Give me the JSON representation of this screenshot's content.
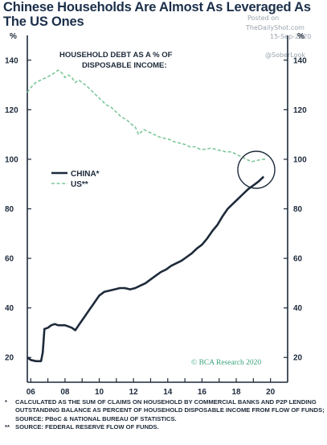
{
  "title": "Chinese Households Are Almost As Leveraged As The US Ones",
  "watermark": {
    "line1": "Posted on",
    "line2": "TheDailyShot.com",
    "line3": "15-Sep-2020",
    "line4": "@SoberLook"
  },
  "chart_data": {
    "type": "line",
    "subtitle": "HOUSEHOLD DEBT AS A % OF DISPOSABLE INCOME:",
    "ylabel_left": "%",
    "ylabel_right": "%",
    "ylim": [
      10,
      150
    ],
    "xlim": [
      2005.8,
      2021.0
    ],
    "yticks": [
      20,
      40,
      60,
      80,
      100,
      120,
      140
    ],
    "xticks": [
      {
        "value": 2006,
        "label": "06"
      },
      {
        "value": 2008,
        "label": "08"
      },
      {
        "value": 2010,
        "label": "10"
      },
      {
        "value": 2012,
        "label": "12"
      },
      {
        "value": 2014,
        "label": "14"
      },
      {
        "value": 2016,
        "label": "16"
      },
      {
        "value": 2018,
        "label": "18"
      },
      {
        "value": 2020,
        "label": "20"
      }
    ],
    "legend_position": "middle-left",
    "credit": "© BCA Research 2020",
    "series": [
      {
        "name": "CHINA*",
        "color": "#1d2a3a",
        "style": "solid",
        "x": [
          2005.8,
          2006.0,
          2006.3,
          2006.6,
          2006.7,
          2006.8,
          2007.0,
          2007.2,
          2007.4,
          2007.6,
          2007.8,
          2008.0,
          2008.2,
          2008.4,
          2008.6,
          2008.8,
          2009.0,
          2009.2,
          2009.4,
          2009.6,
          2009.8,
          2010.0,
          2010.3,
          2010.6,
          2010.9,
          2011.2,
          2011.5,
          2011.8,
          2012.1,
          2012.4,
          2012.7,
          2013.0,
          2013.3,
          2013.6,
          2013.9,
          2014.2,
          2014.5,
          2014.8,
          2015.1,
          2015.4,
          2015.7,
          2016.0,
          2016.3,
          2016.6,
          2016.9,
          2017.2,
          2017.5,
          2017.8,
          2018.1,
          2018.4,
          2018.7,
          2019.0,
          2019.3,
          2019.6
        ],
        "y": [
          20,
          19,
          18.5,
          18.5,
          22,
          31.5,
          32,
          33,
          33.5,
          33,
          33,
          33,
          32.5,
          32,
          31,
          33,
          35,
          37,
          39,
          41,
          43,
          45,
          46.5,
          47,
          47.5,
          48,
          48,
          47.5,
          48,
          49,
          50,
          51.5,
          53,
          54.5,
          55.5,
          57,
          58,
          59,
          60.5,
          62,
          64,
          65.5,
          68,
          71,
          73.5,
          77,
          80,
          82,
          84,
          86,
          88,
          89.5,
          91,
          93
        ]
      },
      {
        "name": "US**",
        "color": "#7ec79a",
        "style": "dashed",
        "x": [
          2005.8,
          2006.0,
          2006.3,
          2006.6,
          2006.9,
          2007.2,
          2007.4,
          2007.6,
          2007.8,
          2008.0,
          2008.2,
          2008.4,
          2008.6,
          2008.8,
          2009.0,
          2009.2,
          2009.5,
          2009.8,
          2010.1,
          2010.4,
          2010.7,
          2011.0,
          2011.3,
          2011.6,
          2011.9,
          2012.1,
          2012.3,
          2012.6,
          2012.9,
          2013.2,
          2013.5,
          2013.8,
          2014.1,
          2014.4,
          2014.7,
          2015.0,
          2015.3,
          2015.6,
          2015.9,
          2016.2,
          2016.5,
          2016.8,
          2017.1,
          2017.4,
          2017.7,
          2018.0,
          2018.3,
          2018.6,
          2018.9,
          2019.2,
          2019.5,
          2019.8
        ],
        "y": [
          127,
          129,
          131,
          132,
          133,
          134,
          135,
          136,
          135,
          133,
          134,
          133,
          131,
          132,
          131,
          130,
          128,
          126,
          124,
          122,
          121,
          119,
          117,
          116,
          114,
          113,
          110,
          112,
          111,
          110,
          109,
          108.5,
          108,
          107,
          106.5,
          106,
          105,
          105,
          104,
          104,
          104.5,
          104,
          103.5,
          103,
          103,
          102,
          101,
          100,
          99,
          99.5,
          100,
          100
        ]
      }
    ]
  },
  "footnotes": [
    {
      "mark": "*",
      "text": "CALCULATED AS THE SUM OF CLAIMS ON HOUSEHOLD BY COMMERCIAL BANKS AND P2P LENDING OUTSTANDING BALANCE AS PERCENT OF HOUSEHOLD DISPOSABLE INCOME FROM FLOW OF FUNDS; SOURCE: PBoC & NATIONAL BUREAU OF STATISTICS."
    },
    {
      "mark": "**",
      "text": "SOURCE: FEDERAL RESERVE FLOW OF FUNDS."
    }
  ]
}
